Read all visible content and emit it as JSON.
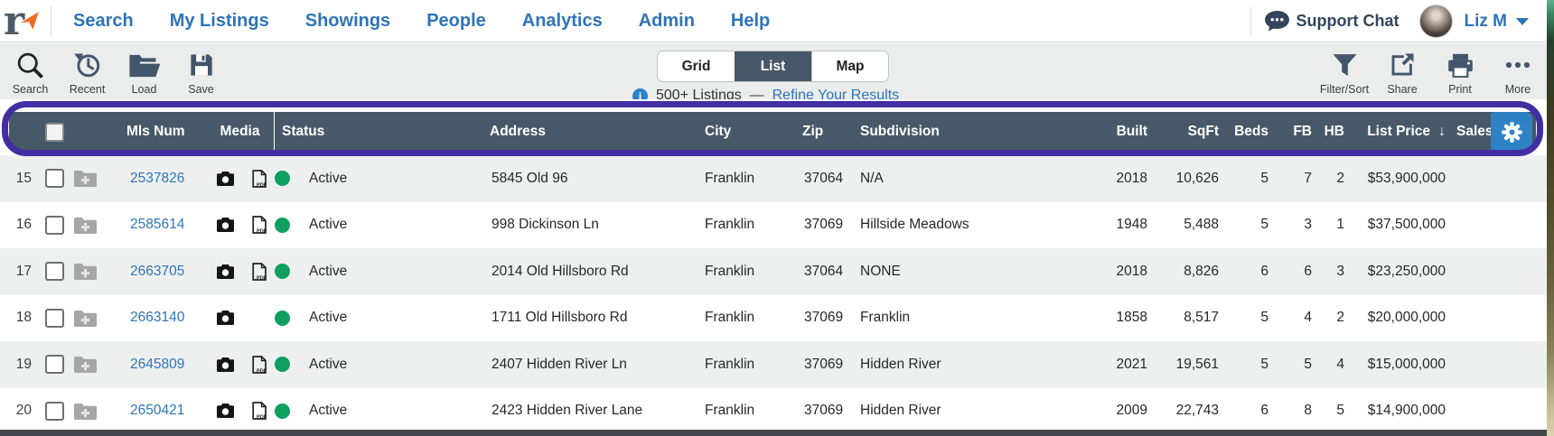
{
  "nav": {
    "items": [
      "Search",
      "My Listings",
      "Showings",
      "People",
      "Analytics",
      "Admin",
      "Help"
    ],
    "support_chat_label": "Support Chat",
    "user_name": "Liz M"
  },
  "toolbar": {
    "left_actions": [
      "Search",
      "Recent",
      "Load",
      "Save"
    ],
    "views": {
      "grid": "Grid",
      "list": "List",
      "map": "Map",
      "selected": "List"
    },
    "results": {
      "count_text": "500+ Listings",
      "separator": "—",
      "refine_link": "Refine Your Results"
    },
    "right_actions": [
      "Filter/Sort",
      "Share",
      "Print",
      "More"
    ]
  },
  "icons": {
    "logo": "realtracs-logo",
    "left_toolbar": [
      "search-icon",
      "history-icon",
      "folder-open-icon",
      "save-icon"
    ],
    "right_toolbar": [
      "filter-funnel-icon",
      "share-icon",
      "printer-icon",
      "ellipsis-icon"
    ],
    "misc": [
      "info-icon",
      "chat-bubble-icon",
      "camera-icon",
      "pdf-icon",
      "folder-add-icon",
      "gear-icon",
      "sort-down-arrow",
      "caret-down-icon"
    ]
  },
  "table": {
    "header": {
      "mls": "Mls Num",
      "media": "Media",
      "status": "Status",
      "address": "Address",
      "city": "City",
      "zip": "Zip",
      "subdivision": "Subdivision",
      "built": "Built",
      "sqft": "SqFt",
      "beds": "Beds",
      "fb": "FB",
      "hb": "HB",
      "list_price": "List Price",
      "sort_arrow": "↓",
      "sales_price_clipped": "Sales Pr"
    },
    "rows": [
      {
        "num": "15",
        "mls": "2537826",
        "has_photo": true,
        "has_pdf": true,
        "status": "Active",
        "address": "5845 Old 96",
        "city": "Franklin",
        "zip": "37064",
        "subdivision": "N/A",
        "built": "2018",
        "sqft": "10,626",
        "beds": "5",
        "fb": "7",
        "hb": "2",
        "list_price": "$53,900,000"
      },
      {
        "num": "16",
        "mls": "2585614",
        "has_photo": true,
        "has_pdf": true,
        "status": "Active",
        "address": "998 Dickinson Ln",
        "city": "Franklin",
        "zip": "37069",
        "subdivision": "Hillside Meadows",
        "built": "1948",
        "sqft": "5,488",
        "beds": "5",
        "fb": "3",
        "hb": "1",
        "list_price": "$37,500,000"
      },
      {
        "num": "17",
        "mls": "2663705",
        "has_photo": true,
        "has_pdf": true,
        "status": "Active",
        "address": "2014 Old Hillsboro Rd",
        "city": "Franklin",
        "zip": "37064",
        "subdivision": "NONE",
        "built": "2018",
        "sqft": "8,826",
        "beds": "6",
        "fb": "6",
        "hb": "3",
        "list_price": "$23,250,000"
      },
      {
        "num": "18",
        "mls": "2663140",
        "has_photo": true,
        "has_pdf": false,
        "status": "Active",
        "address": "1711 Old Hillsboro Rd",
        "city": "Franklin",
        "zip": "37069",
        "subdivision": "Franklin",
        "built": "1858",
        "sqft": "8,517",
        "beds": "5",
        "fb": "4",
        "hb": "2",
        "list_price": "$20,000,000"
      },
      {
        "num": "19",
        "mls": "2645809",
        "has_photo": true,
        "has_pdf": true,
        "status": "Active",
        "address": "2407 Hidden River Ln",
        "city": "Franklin",
        "zip": "37069",
        "subdivision": "Hidden River",
        "built": "2021",
        "sqft": "19,561",
        "beds": "5",
        "fb": "5",
        "hb": "4",
        "list_price": "$15,000,000"
      },
      {
        "num": "20",
        "mls": "2650421",
        "has_photo": true,
        "has_pdf": true,
        "status": "Active",
        "address": "2423 Hidden River Lane",
        "city": "Franklin",
        "zip": "37069",
        "subdivision": "Hidden River",
        "built": "2009",
        "sqft": "22,743",
        "beds": "6",
        "fb": "8",
        "hb": "5",
        "list_price": "$14,900,000"
      }
    ]
  },
  "colors": {
    "nav_blue": "#2e74b9",
    "slate": "#475968",
    "toolbar_bg": "#ebecec",
    "highlight_purple": "#432da2",
    "active_green": "#0fa05f",
    "gear_button_blue": "#2d82c6",
    "support_navy": "#31455c",
    "row_alt_gray": "#eef0f0"
  }
}
